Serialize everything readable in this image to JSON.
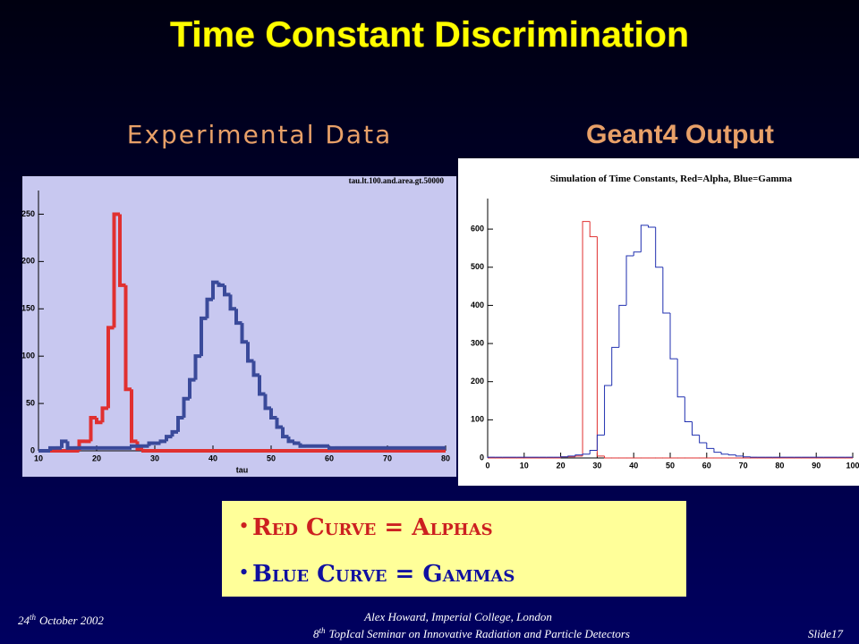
{
  "slide": {
    "title": "Time Constant Discrimination",
    "left_heading": "Experimental Data",
    "right_heading": "Geant4 Output",
    "legend_items": [
      "Red Curve = Alphas",
      "Blue Curve = Gammas"
    ],
    "footer": {
      "date_day": "24",
      "date_suffix": "th",
      "date_rest": "October 2002",
      "author": "Alex Howard, Imperial College, London",
      "seminar_num": "8",
      "seminar_suffix": "th",
      "seminar_rest": "TopIcal Seminar on Innovative Radiation and Particle Detectors",
      "slide": "Slide17"
    }
  },
  "chart_data": [
    {
      "type": "histogram",
      "title": "tau.lt.100.and.area.gt.50000",
      "x_label": "tau",
      "bins": [
        10,
        11,
        12,
        13,
        14,
        15,
        16,
        17,
        18,
        19,
        20,
        21,
        22,
        23,
        24,
        25,
        26,
        27,
        28,
        29,
        30,
        31,
        32,
        33,
        34,
        35,
        36,
        37,
        38,
        39,
        40,
        41,
        42,
        43,
        44,
        45,
        46,
        47,
        48,
        49,
        50,
        51,
        52,
        53,
        54,
        55,
        56,
        57,
        58,
        59,
        60,
        61,
        62,
        63,
        64,
        65,
        66,
        67,
        68,
        69,
        70,
        71,
        72,
        73,
        74,
        75,
        76,
        77,
        78,
        79,
        80
      ],
      "xlim": [
        10,
        80
      ],
      "xticks": [
        10,
        20,
        30,
        40,
        50,
        60,
        70,
        80
      ],
      "ylim": [
        0,
        275
      ],
      "yticks": [
        0,
        50,
        100,
        150,
        200,
        250
      ],
      "background": "#c8c8f0",
      "line_width": 4,
      "series": [
        {
          "color": "#e03030",
          "values": [
            0,
            0,
            0,
            0,
            0,
            0,
            0,
            10,
            10,
            35,
            30,
            45,
            130,
            250,
            175,
            65,
            10,
            2,
            0,
            0,
            0,
            0,
            0,
            0,
            0,
            0,
            0,
            0,
            0,
            0,
            0,
            0,
            0,
            0,
            0,
            0,
            0,
            0,
            0,
            0,
            0,
            0,
            0,
            0,
            0,
            0,
            0,
            0,
            0,
            0,
            0,
            0,
            0,
            0,
            0,
            0,
            0,
            0,
            0,
            0,
            0,
            0,
            0,
            0,
            0,
            0,
            0,
            0,
            0,
            0
          ]
        },
        {
          "color": "#3a4a9a",
          "values": [
            0,
            0,
            3,
            3,
            10,
            3,
            3,
            3,
            3,
            3,
            3,
            3,
            3,
            3,
            3,
            3,
            5,
            5,
            5,
            8,
            8,
            10,
            15,
            20,
            35,
            55,
            75,
            100,
            140,
            160,
            178,
            175,
            165,
            150,
            135,
            115,
            95,
            80,
            60,
            45,
            35,
            25,
            15,
            10,
            8,
            5,
            5,
            5,
            5,
            5,
            3,
            3,
            3,
            3,
            3,
            3,
            3,
            3,
            3,
            3,
            3,
            3,
            3,
            3,
            3,
            3,
            3,
            3,
            3,
            3
          ]
        }
      ]
    },
    {
      "type": "histogram",
      "title": "Simulation of Time Constants, Red=Alpha, Blue=Gamma",
      "bins": [
        0,
        2,
        4,
        6,
        8,
        10,
        12,
        14,
        16,
        18,
        20,
        22,
        24,
        26,
        28,
        30,
        32,
        34,
        36,
        38,
        40,
        42,
        44,
        46,
        48,
        50,
        52,
        54,
        56,
        58,
        60,
        62,
        64,
        66,
        68,
        70,
        72,
        74,
        76,
        78,
        80,
        82,
        84,
        86,
        88,
        90,
        92,
        94,
        96,
        98,
        100
      ],
      "xlim": [
        0,
        100
      ],
      "xticks": [
        0,
        10,
        20,
        30,
        40,
        50,
        60,
        70,
        80,
        90,
        100
      ],
      "ylim": [
        0,
        680
      ],
      "yticks": [
        0,
        100,
        200,
        300,
        400,
        500,
        600
      ],
      "background": "#ffffff",
      "line_width": 1,
      "series": [
        {
          "color": "#e03030",
          "values": [
            0,
            0,
            0,
            0,
            0,
            0,
            0,
            0,
            0,
            0,
            3,
            3,
            5,
            620,
            580,
            5,
            0,
            0,
            0,
            0,
            0,
            0,
            0,
            0,
            0,
            0,
            0,
            0,
            0,
            0,
            0,
            0,
            0,
            0,
            0,
            0,
            0,
            0,
            0,
            0,
            0,
            0,
            0,
            0,
            0,
            0,
            0,
            0,
            0,
            0
          ]
        },
        {
          "color": "#2030b0",
          "values": [
            2,
            2,
            2,
            2,
            2,
            2,
            2,
            2,
            2,
            2,
            3,
            5,
            8,
            10,
            20,
            60,
            190,
            290,
            400,
            530,
            540,
            610,
            605,
            500,
            380,
            260,
            160,
            95,
            60,
            40,
            25,
            15,
            10,
            8,
            5,
            3,
            2,
            2,
            2,
            2,
            2,
            2,
            2,
            2,
            2,
            2,
            2,
            2,
            2,
            2
          ]
        }
      ]
    }
  ]
}
